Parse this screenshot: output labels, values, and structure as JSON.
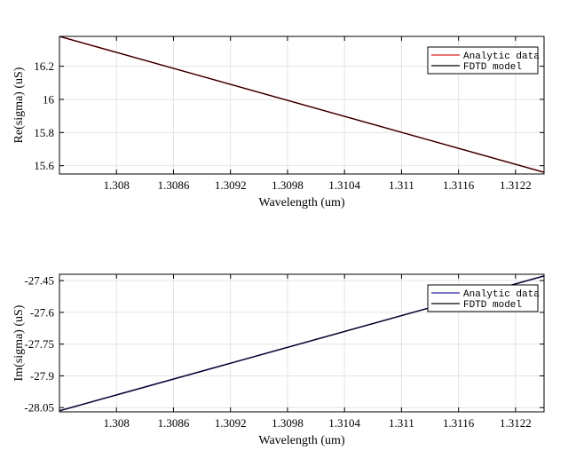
{
  "chart_data": [
    {
      "type": "line",
      "title": "",
      "xlabel": "Wavelength (um)",
      "ylabel": "Re(sigma) (uS)",
      "xlim": [
        1.3074,
        1.3125
      ],
      "ylim": [
        15.55,
        16.38
      ],
      "xticks": [
        1.308,
        1.3086,
        1.3092,
        1.3098,
        1.3104,
        1.311,
        1.3116,
        1.3122
      ],
      "xtick_labels": [
        "1.308",
        "1.3086",
        "1.3092",
        "1.3098",
        "1.3104",
        "1.311",
        "1.3116",
        "1.3122"
      ],
      "yticks": [
        15.6,
        15.8,
        16,
        16.2
      ],
      "ytick_labels": [
        "15.6",
        "15.8",
        "16",
        "16.2"
      ],
      "grid": true,
      "legend_position": "top-right",
      "series": [
        {
          "name": "Analytic data",
          "color": "#e02020",
          "x": [
            1.3074,
            1.3125
          ],
          "y": [
            16.38,
            15.56
          ]
        },
        {
          "name": "FDTD model",
          "color": "#000000",
          "x": [
            1.3074,
            1.3125
          ],
          "y": [
            16.38,
            15.56
          ]
        }
      ]
    },
    {
      "type": "line",
      "title": "",
      "xlabel": "Wavelength (um)",
      "ylabel": "Im(sigma) (uS)",
      "xlim": [
        1.3074,
        1.3125
      ],
      "ylim": [
        -28.07,
        -27.42
      ],
      "xticks": [
        1.308,
        1.3086,
        1.3092,
        1.3098,
        1.3104,
        1.311,
        1.3116,
        1.3122
      ],
      "xtick_labels": [
        "1.308",
        "1.3086",
        "1.3092",
        "1.3098",
        "1.3104",
        "1.311",
        "1.3116",
        "1.3122"
      ],
      "yticks": [
        -28.05,
        -27.9,
        -27.75,
        -27.6,
        -27.45
      ],
      "ytick_labels": [
        "-28.05",
        "-27.9",
        "-27.75",
        "-27.6",
        "-27.45"
      ],
      "grid": true,
      "legend_position": "top-right",
      "series": [
        {
          "name": "Analytic data",
          "color": "#2a2aa0",
          "x": [
            1.3074,
            1.3125
          ],
          "y": [
            -28.065,
            -27.428
          ]
        },
        {
          "name": "FDTD model",
          "color": "#000000",
          "x": [
            1.3074,
            1.3125
          ],
          "y": [
            -28.065,
            -27.428
          ]
        }
      ]
    }
  ]
}
